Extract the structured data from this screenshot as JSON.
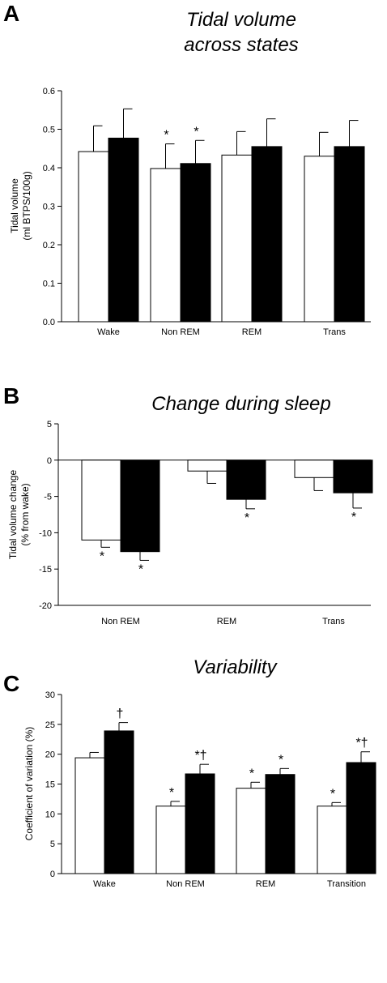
{
  "chart_data": [
    {
      "type": "bar",
      "panel_label": "A",
      "title_lines": [
        "Tidal volume",
        "across states"
      ],
      "ylabel_lines": [
        "Tidal volume",
        "(ml BTPS/100g)"
      ],
      "ylim": [
        0,
        0.6
      ],
      "yticks": [
        "0.0",
        "0.1",
        "0.2",
        "0.3",
        "0.4",
        "0.5",
        "0.6"
      ],
      "categories": [
        "Wake",
        "Non REM",
        "REM",
        "Trans"
      ],
      "series": [
        {
          "fill": "#ffffff",
          "values": [
            0.442,
            0.398,
            0.433,
            0.43
          ],
          "errors": [
            0.067,
            0.064,
            0.061,
            0.062
          ],
          "markers": [
            "",
            "*",
            "",
            ""
          ]
        },
        {
          "fill": "#000000",
          "values": [
            0.477,
            0.411,
            0.455,
            0.455
          ],
          "errors": [
            0.076,
            0.06,
            0.072,
            0.068
          ],
          "markers": [
            "",
            "*",
            "",
            ""
          ]
        }
      ]
    },
    {
      "type": "bar",
      "panel_label": "B",
      "title_lines": [
        "Change during sleep"
      ],
      "ylabel_lines": [
        "Tidal volume change",
        "(% from wake)"
      ],
      "ylim": [
        -20,
        5
      ],
      "yticks": [
        "-20",
        "-15",
        "-10",
        "-5",
        "0",
        "5"
      ],
      "categories": [
        "Non REM",
        "REM",
        "Trans"
      ],
      "series": [
        {
          "fill": "#ffffff",
          "values": [
            -11.0,
            -1.5,
            -2.4
          ],
          "errors": [
            1.0,
            1.7,
            1.8
          ],
          "markers": [
            "*",
            "",
            ""
          ]
        },
        {
          "fill": "#000000",
          "values": [
            -12.6,
            -5.4,
            -4.5
          ],
          "errors": [
            1.2,
            1.3,
            2.1
          ],
          "markers": [
            "*",
            "*",
            "*"
          ]
        }
      ]
    },
    {
      "type": "bar",
      "panel_label": "C",
      "title_lines": [
        "Variability"
      ],
      "ylabel_lines": [
        "Coefficient of variation (%)"
      ],
      "ylim": [
        0,
        30
      ],
      "yticks": [
        "0",
        "5",
        "10",
        "15",
        "20",
        "25",
        "30"
      ],
      "categories": [
        "Wake",
        "Non REM",
        "REM",
        "Transition"
      ],
      "series": [
        {
          "fill": "#ffffff",
          "values": [
            19.4,
            11.3,
            14.3,
            11.3
          ],
          "errors": [
            0.9,
            0.8,
            1.0,
            0.6
          ],
          "markers": [
            "",
            "*",
            "*",
            "*"
          ]
        },
        {
          "fill": "#000000",
          "values": [
            23.9,
            16.7,
            16.6,
            18.6
          ],
          "errors": [
            1.4,
            1.6,
            1.0,
            1.8
          ],
          "markers": [
            "†",
            "*†",
            "*",
            "*†"
          ]
        }
      ]
    }
  ]
}
